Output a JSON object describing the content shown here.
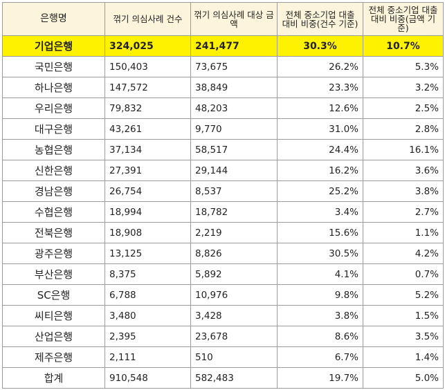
{
  "headers": [
    "은행명",
    "꺾기 의심사례 건수",
    "꺾기 의심사례 대상 금액",
    "전체 중소기업 대출 대비 비중(건수 기준)",
    "전체 중소기업 대출 대비 비중(금액 기준)"
  ],
  "rows": [
    {
      "bank": "기업은행",
      "count": "324,025",
      "amount": "241,477",
      "pct_count": "30.3%",
      "pct_amount": "10.7%"
    },
    {
      "bank": "국민은행",
      "count": "150,403",
      "amount": "73,675",
      "pct_count": "26.2%",
      "pct_amount": "5.3%"
    },
    {
      "bank": "하나은행",
      "count": "147,572",
      "amount": "38,849",
      "pct_count": "23.3%",
      "pct_amount": "3.2%"
    },
    {
      "bank": "우리은행",
      "count": "79,832",
      "amount": "48,203",
      "pct_count": "12.6%",
      "pct_amount": "2.5%"
    },
    {
      "bank": "대구은행",
      "count": "43,261",
      "amount": "9,770",
      "pct_count": "31.0%",
      "pct_amount": "2.8%"
    },
    {
      "bank": "농협은행",
      "count": "37,134",
      "amount": "58,517",
      "pct_count": "24.4%",
      "pct_amount": "16.1%"
    },
    {
      "bank": "신한은행",
      "count": "27,391",
      "amount": "29,144",
      "pct_count": "16.2%",
      "pct_amount": "3.6%"
    },
    {
      "bank": "경남은행",
      "count": "26,754",
      "amount": "8,537",
      "pct_count": "25.2%",
      "pct_amount": "3.8%"
    },
    {
      "bank": "수협은행",
      "count": "18,994",
      "amount": "18,782",
      "pct_count": "3.4%",
      "pct_amount": "2.7%"
    },
    {
      "bank": "전북은행",
      "count": "18,908",
      "amount": "2,219",
      "pct_count": "15.6%",
      "pct_amount": "1.1%"
    },
    {
      "bank": "광주은행",
      "count": "13,125",
      "amount": "8,826",
      "pct_count": "30.5%",
      "pct_amount": "4.2%"
    },
    {
      "bank": "부산은행",
      "count": "8,375",
      "amount": "5,892",
      "pct_count": "4.1%",
      "pct_amount": "0.7%"
    },
    {
      "bank": "SC은행",
      "count": "6,788",
      "amount": "10,976",
      "pct_count": "9.8%",
      "pct_amount": "5.2%"
    },
    {
      "bank": "씨티은행",
      "count": "3,480",
      "amount": "3,428",
      "pct_count": "3.8%",
      "pct_amount": "1.5%"
    },
    {
      "bank": "산업은행",
      "count": "2,395",
      "amount": "23,678",
      "pct_count": "8.6%",
      "pct_amount": "3.5%"
    },
    {
      "bank": "제주은행",
      "count": "2,111",
      "amount": "510",
      "pct_count": "6.7%",
      "pct_amount": "1.4%"
    },
    {
      "bank": "합계",
      "count": "910,548",
      "amount": "582,483",
      "pct_count": "19.7%",
      "pct_amount": "5.0%"
    }
  ],
  "highlight_color": "#fff200",
  "header_bg": "#fdf4dc"
}
